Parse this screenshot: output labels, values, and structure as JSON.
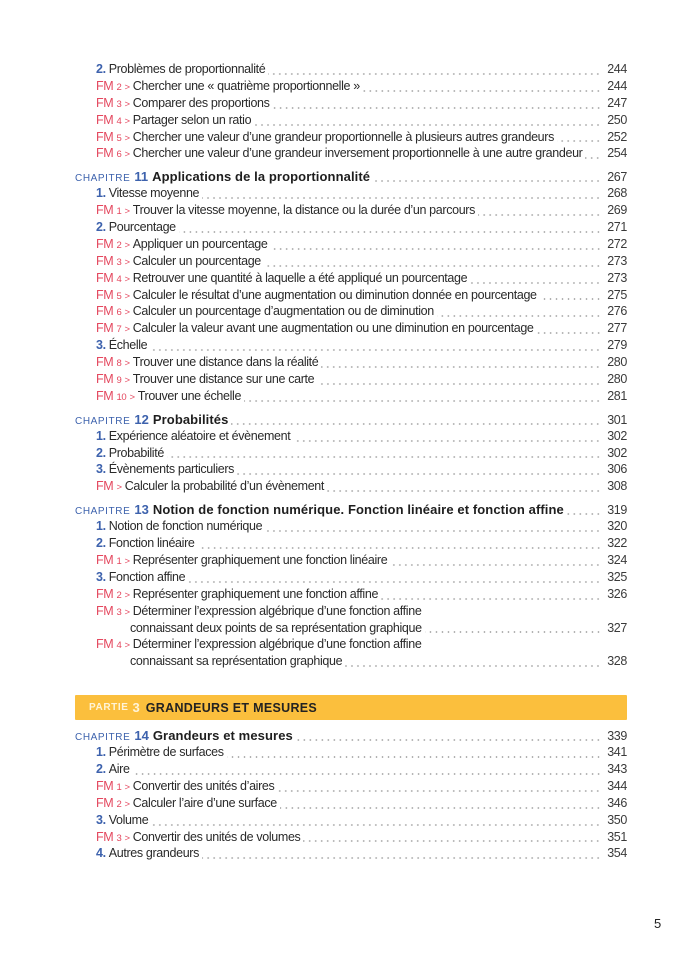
{
  "groups": [
    {
      "rows": [
        {
          "type": "section",
          "num": "2.",
          "text": "Problèmes de proportionnalité",
          "page": "244"
        },
        {
          "type": "fm",
          "fm": "FM",
          "n": "2",
          "text": "Chercher une « quatrième proportionnelle »",
          "page": "244"
        },
        {
          "type": "fm",
          "fm": "FM",
          "n": "3",
          "text": "Comparer des proportions",
          "page": "247"
        },
        {
          "type": "fm",
          "fm": "FM",
          "n": "4",
          "text": "Partager selon un ratio",
          "page": "250"
        },
        {
          "type": "fm",
          "fm": "FM",
          "n": "5",
          "text": "Chercher une valeur d’une grandeur proportionnelle à plusieurs autres grandeurs",
          "page": "252"
        },
        {
          "type": "fm",
          "fm": "FM",
          "n": "6",
          "text": "Chercher une valeur d’une grandeur inversement proportionnelle à une autre grandeur",
          "page": "254"
        }
      ]
    },
    {
      "rows": [
        {
          "type": "chapter",
          "label": "CHAPITRE",
          "num": "11",
          "text": "Applications de la proportionnalité",
          "page": "267"
        },
        {
          "type": "section",
          "num": "1.",
          "text": "Vitesse moyenne",
          "page": "268"
        },
        {
          "type": "fm",
          "fm": "FM",
          "n": "1",
          "text": "Trouver la vitesse moyenne, la distance ou la durée d’un parcours",
          "page": "269"
        },
        {
          "type": "section",
          "num": "2.",
          "text": "Pourcentage",
          "page": "271"
        },
        {
          "type": "fm",
          "fm": "FM",
          "n": "2",
          "text": "Appliquer un pourcentage",
          "page": "272"
        },
        {
          "type": "fm",
          "fm": "FM",
          "n": "3",
          "text": "Calculer un pourcentage",
          "page": "273"
        },
        {
          "type": "fm",
          "fm": "FM",
          "n": "4",
          "text": "Retrouver une quantité à laquelle a été appliqué un pourcentage",
          "page": "273"
        },
        {
          "type": "fm",
          "fm": "FM",
          "n": "5",
          "text": "Calculer le résultat d’une augmentation ou diminution donnée en pourcentage",
          "page": "275"
        },
        {
          "type": "fm",
          "fm": "FM",
          "n": "6",
          "text": "Calculer un pourcentage d’augmentation ou de diminution",
          "page": "276"
        },
        {
          "type": "fm",
          "fm": "FM",
          "n": "7",
          "text": "Calculer la valeur avant une augmentation ou une diminution en pourcentage",
          "page": "277"
        },
        {
          "type": "section",
          "num": "3.",
          "text": "Échelle",
          "page": "279"
        },
        {
          "type": "fm",
          "fm": "FM",
          "n": "8",
          "text": "Trouver une distance dans la réalité",
          "page": "280"
        },
        {
          "type": "fm",
          "fm": "FM",
          "n": "9",
          "text": "Trouver une distance sur une carte",
          "page": "280"
        },
        {
          "type": "fm",
          "fm": "FM",
          "n": "10",
          "text": "Trouver une échelle",
          "page": "281"
        }
      ]
    },
    {
      "rows": [
        {
          "type": "chapter",
          "label": "CHAPITRE",
          "num": "12",
          "text": "Probabilités",
          "page": "301"
        },
        {
          "type": "section",
          "num": "1.",
          "text": "Expérience aléatoire et évènement",
          "page": "302"
        },
        {
          "type": "section",
          "num": "2.",
          "text": "Probabilité",
          "page": "302"
        },
        {
          "type": "section",
          "num": "3.",
          "text": "Évènements particuliers",
          "page": "306"
        },
        {
          "type": "fm",
          "fm": "FM",
          "n": "",
          "text": "Calculer la probabilité d’un évènement",
          "page": "308"
        }
      ]
    },
    {
      "rows": [
        {
          "type": "chapter",
          "label": "CHAPITRE",
          "num": "13",
          "text": "Notion de fonction numérique. Fonction linéaire et fonction affine",
          "page": "319"
        },
        {
          "type": "section",
          "num": "1.",
          "text": "Notion de fonction numérique",
          "page": "320"
        },
        {
          "type": "section",
          "num": "2.",
          "text": "Fonction linéaire",
          "page": "322"
        },
        {
          "type": "fm",
          "fm": "FM",
          "n": "1",
          "text": "Représenter graphiquement une fonction linéaire",
          "page": "324"
        },
        {
          "type": "section",
          "num": "3.",
          "text": "Fonction affine",
          "page": "325"
        },
        {
          "type": "fm",
          "fm": "FM",
          "n": "2",
          "text": "Représenter graphiquement une fonction affine",
          "page": "326"
        },
        {
          "type": "fm",
          "fm": "FM",
          "n": "3",
          "text": "Déterminer l’expression algébrique d’une fonction affine",
          "cont": "connaissant deux points de sa représentation graphique",
          "page": "327"
        },
        {
          "type": "fm",
          "fm": "FM",
          "n": "4",
          "text": "Déterminer l’expression algébrique d’une fonction affine",
          "cont": "connaissant sa représentation graphique",
          "page": "328"
        }
      ]
    },
    {
      "band": {
        "label": "PARTIE",
        "num": "3",
        "text": "GRANDEURS ET MESURES"
      },
      "rows": [
        {
          "type": "chapter",
          "label": "CHAPITRE",
          "num": "14",
          "text": "Grandeurs et mesures",
          "page": "339"
        },
        {
          "type": "section",
          "num": "1.",
          "text": "Périmètre de surfaces",
          "page": "341"
        },
        {
          "type": "section",
          "num": "2.",
          "text": "Aire",
          "page": "343"
        },
        {
          "type": "fm",
          "fm": "FM",
          "n": "1",
          "text": "Convertir des unités d’aires",
          "page": "344"
        },
        {
          "type": "fm",
          "fm": "FM",
          "n": "2",
          "text": "Calculer l’aire d’une surface",
          "page": "346"
        },
        {
          "type": "section",
          "num": "3.",
          "text": "Volume",
          "page": "350"
        },
        {
          "type": "fm",
          "fm": "FM",
          "n": "3",
          "text": "Convertir des unités de volumes",
          "page": "351"
        },
        {
          "type": "section",
          "num": "4.",
          "text": "Autres grandeurs",
          "page": "354"
        }
      ]
    }
  ],
  "fm_separator": ">",
  "page_number": "5",
  "colors": {
    "chapter_blue": "#3d62ad",
    "fm_red": "#e4485f",
    "band_orange": "#fbbf3d"
  }
}
